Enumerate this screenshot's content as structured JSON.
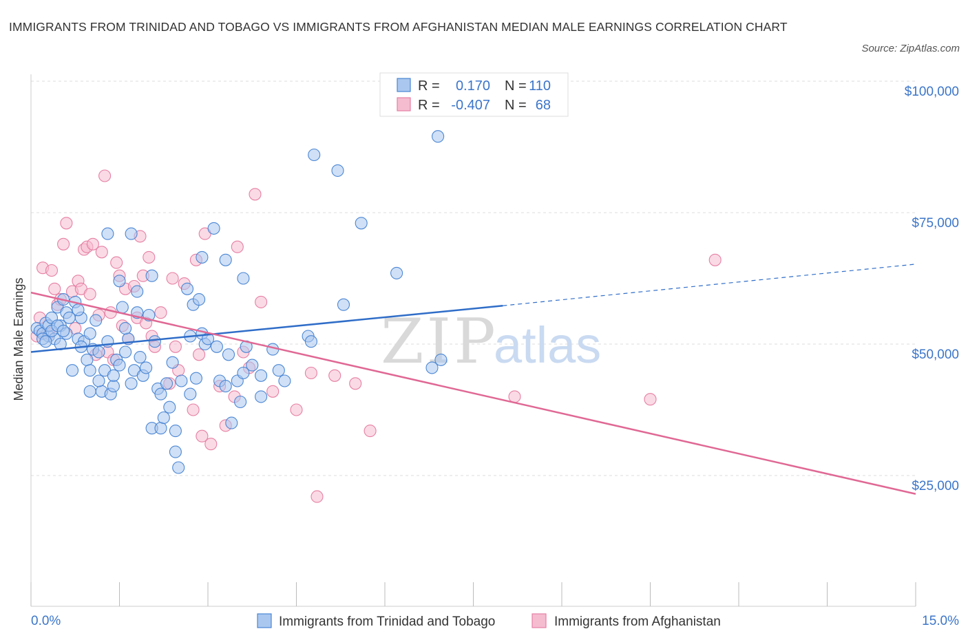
{
  "header": {
    "title": "IMMIGRANTS FROM TRINIDAD AND TOBAGO VS IMMIGRANTS FROM AFGHANISTAN MEDIAN MALE EARNINGS CORRELATION CHART",
    "source": "Source: ZipAtlas.com"
  },
  "watermark": {
    "zip": "ZIP",
    "atlas": "atlas"
  },
  "legend": {
    "r_label": "R =",
    "n_label": "N =",
    "rows": [
      {
        "r": "0.170",
        "n": "110"
      },
      {
        "r": "-0.407",
        "n": "68"
      }
    ]
  },
  "colors": {
    "series1_fill": "#aac7ef",
    "series1_stroke": "#4a86d4",
    "series1_line": "#2f6dc8",
    "series2_fill": "#f5bcd0",
    "series2_stroke": "#e67fa3",
    "series2_line": "#e06894",
    "axis_text": "#3b75c9",
    "grid": "#dddddd"
  },
  "chart_data": {
    "type": "scatter",
    "title": "IMMIGRANTS FROM TRINIDAD AND TOBAGO VS IMMIGRANTS FROM AFGHANISTAN MEDIAN MALE EARNINGS CORRELATION CHART",
    "xlabel": "",
    "ylabel": "Median Male Earnings",
    "xlim": [
      0,
      15
    ],
    "ylim": [
      0,
      105000
    ],
    "x_tick_labels": [
      "0.0%",
      "15.0%"
    ],
    "y_ticks": [
      {
        "value": 25000,
        "label": "$25,000"
      },
      {
        "value": 50000,
        "label": "$50,000"
      },
      {
        "value": 75000,
        "label": "$75,000"
      },
      {
        "value": 100000,
        "label": "$100,000"
      }
    ],
    "grid": "horizontal dashed",
    "legend_position": "top-center",
    "series": [
      {
        "name": "Immigrants from Trinidad and Tobago",
        "r": 0.17,
        "n": 110,
        "trend": {
          "x0": 0,
          "y0": 48500,
          "x1": 8.0,
          "y1": 57300,
          "dashed_to_x": 15,
          "dashed_to_y": 65200
        },
        "points": [
          [
            0.1,
            53000
          ],
          [
            0.15,
            52500
          ],
          [
            0.2,
            52000
          ],
          [
            0.25,
            54000
          ],
          [
            0.3,
            51500
          ],
          [
            0.3,
            53500
          ],
          [
            0.35,
            55000
          ],
          [
            0.4,
            51000
          ],
          [
            0.45,
            57000
          ],
          [
            0.5,
            50000
          ],
          [
            0.5,
            53500
          ],
          [
            0.55,
            58500
          ],
          [
            0.6,
            56000
          ],
          [
            0.6,
            52000
          ],
          [
            0.65,
            55000
          ],
          [
            0.7,
            45000
          ],
          [
            0.75,
            58000
          ],
          [
            0.8,
            51000
          ],
          [
            0.85,
            55000
          ],
          [
            0.9,
            50500
          ],
          [
            0.95,
            47000
          ],
          [
            1.0,
            52000
          ],
          [
            1.0,
            41000
          ],
          [
            1.05,
            49000
          ],
          [
            1.1,
            54500
          ],
          [
            1.15,
            48500
          ],
          [
            1.2,
            41000
          ],
          [
            1.25,
            45000
          ],
          [
            1.3,
            50500
          ],
          [
            1.3,
            71000
          ],
          [
            1.35,
            40500
          ],
          [
            1.4,
            42000
          ],
          [
            1.45,
            47000
          ],
          [
            1.5,
            46000
          ],
          [
            1.5,
            62000
          ],
          [
            1.55,
            57000
          ],
          [
            1.6,
            48500
          ],
          [
            1.65,
            51000
          ],
          [
            1.7,
            42500
          ],
          [
            1.7,
            71000
          ],
          [
            1.75,
            45000
          ],
          [
            1.8,
            56000
          ],
          [
            1.8,
            60000
          ],
          [
            1.85,
            47500
          ],
          [
            1.9,
            44000
          ],
          [
            1.95,
            45500
          ],
          [
            2.0,
            55500
          ],
          [
            2.05,
            63000
          ],
          [
            2.05,
            34000
          ],
          [
            2.1,
            50500
          ],
          [
            2.15,
            41500
          ],
          [
            2.2,
            34000
          ],
          [
            2.2,
            40500
          ],
          [
            2.25,
            36000
          ],
          [
            2.3,
            42500
          ],
          [
            2.4,
            46500
          ],
          [
            2.45,
            33500
          ],
          [
            2.45,
            29500
          ],
          [
            2.5,
            26500
          ],
          [
            2.55,
            43000
          ],
          [
            2.65,
            60500
          ],
          [
            2.7,
            40500
          ],
          [
            2.7,
            51500
          ],
          [
            2.75,
            57500
          ],
          [
            2.8,
            43500
          ],
          [
            2.85,
            58500
          ],
          [
            2.9,
            52000
          ],
          [
            2.9,
            66500
          ],
          [
            2.95,
            50000
          ],
          [
            3.1,
            72000
          ],
          [
            3.15,
            49500
          ],
          [
            3.2,
            43000
          ],
          [
            3.3,
            42000
          ],
          [
            3.3,
            66000
          ],
          [
            3.35,
            48000
          ],
          [
            3.4,
            35000
          ],
          [
            3.5,
            43000
          ],
          [
            3.55,
            39000
          ],
          [
            3.6,
            44500
          ],
          [
            3.6,
            62500
          ],
          [
            3.65,
            49500
          ],
          [
            3.9,
            44000
          ],
          [
            3.9,
            40000
          ],
          [
            4.1,
            49000
          ],
          [
            4.2,
            45000
          ],
          [
            4.3,
            43000
          ],
          [
            4.7,
            51500
          ],
          [
            4.75,
            50500
          ],
          [
            4.8,
            86000
          ],
          [
            5.2,
            83000
          ],
          [
            5.3,
            57500
          ],
          [
            5.6,
            73000
          ],
          [
            6.2,
            63500
          ],
          [
            6.8,
            45500
          ],
          [
            6.95,
            47000
          ],
          [
            6.9,
            89500
          ],
          [
            0.2,
            51000
          ],
          [
            0.35,
            52500
          ],
          [
            1.0,
            45000
          ],
          [
            1.15,
            43000
          ],
          [
            0.45,
            53500
          ],
          [
            0.85,
            49500
          ],
          [
            1.4,
            44000
          ],
          [
            2.35,
            38000
          ],
          [
            0.55,
            52500
          ],
          [
            3.0,
            51000
          ],
          [
            1.6,
            53000
          ],
          [
            0.25,
            50500
          ],
          [
            0.8,
            56500
          ],
          [
            3.75,
            46000
          ]
        ]
      },
      {
        "name": "Immigrants from Afghanistan",
        "r": -0.407,
        "n": 68,
        "trend": {
          "x0": 0,
          "y0": 59800,
          "x1": 15,
          "y1": 21500
        },
        "points": [
          [
            0.1,
            51500
          ],
          [
            0.15,
            55000
          ],
          [
            0.2,
            64500
          ],
          [
            0.3,
            52000
          ],
          [
            0.35,
            64000
          ],
          [
            0.4,
            60500
          ],
          [
            0.45,
            57500
          ],
          [
            0.5,
            58500
          ],
          [
            0.55,
            69000
          ],
          [
            0.6,
            73000
          ],
          [
            0.7,
            60000
          ],
          [
            0.75,
            53000
          ],
          [
            0.8,
            62000
          ],
          [
            0.85,
            60500
          ],
          [
            0.9,
            68000
          ],
          [
            0.95,
            68500
          ],
          [
            1.0,
            59500
          ],
          [
            1.05,
            69000
          ],
          [
            1.1,
            48000
          ],
          [
            1.15,
            55500
          ],
          [
            1.2,
            67500
          ],
          [
            1.25,
            82000
          ],
          [
            1.3,
            48500
          ],
          [
            1.35,
            56000
          ],
          [
            1.4,
            47000
          ],
          [
            1.45,
            65500
          ],
          [
            1.5,
            63000
          ],
          [
            1.55,
            53500
          ],
          [
            1.6,
            60500
          ],
          [
            1.65,
            51000
          ],
          [
            1.75,
            61000
          ],
          [
            1.8,
            55000
          ],
          [
            1.85,
            70500
          ],
          [
            1.9,
            63000
          ],
          [
            1.95,
            54000
          ],
          [
            2.0,
            66500
          ],
          [
            2.05,
            51500
          ],
          [
            2.1,
            49500
          ],
          [
            2.2,
            56000
          ],
          [
            2.35,
            42500
          ],
          [
            2.4,
            62500
          ],
          [
            2.45,
            49500
          ],
          [
            2.5,
            45000
          ],
          [
            2.6,
            61500
          ],
          [
            2.75,
            37500
          ],
          [
            2.8,
            66000
          ],
          [
            2.85,
            48000
          ],
          [
            2.9,
            32500
          ],
          [
            2.95,
            71000
          ],
          [
            3.05,
            31000
          ],
          [
            3.2,
            42000
          ],
          [
            3.3,
            34500
          ],
          [
            3.45,
            40000
          ],
          [
            3.5,
            68500
          ],
          [
            3.6,
            48500
          ],
          [
            3.7,
            45500
          ],
          [
            3.8,
            78500
          ],
          [
            3.9,
            58000
          ],
          [
            4.1,
            41000
          ],
          [
            4.5,
            37500
          ],
          [
            4.75,
            44500
          ],
          [
            4.85,
            21000
          ],
          [
            5.15,
            44000
          ],
          [
            5.5,
            42500
          ],
          [
            5.75,
            33500
          ],
          [
            8.2,
            40000
          ],
          [
            10.5,
            39500
          ],
          [
            11.6,
            66000
          ]
        ]
      }
    ]
  },
  "bottom_legend": {
    "items": [
      {
        "label": "Immigrants from Trinidad and Tobago"
      },
      {
        "label": "Immigrants from Afghanistan"
      }
    ]
  }
}
